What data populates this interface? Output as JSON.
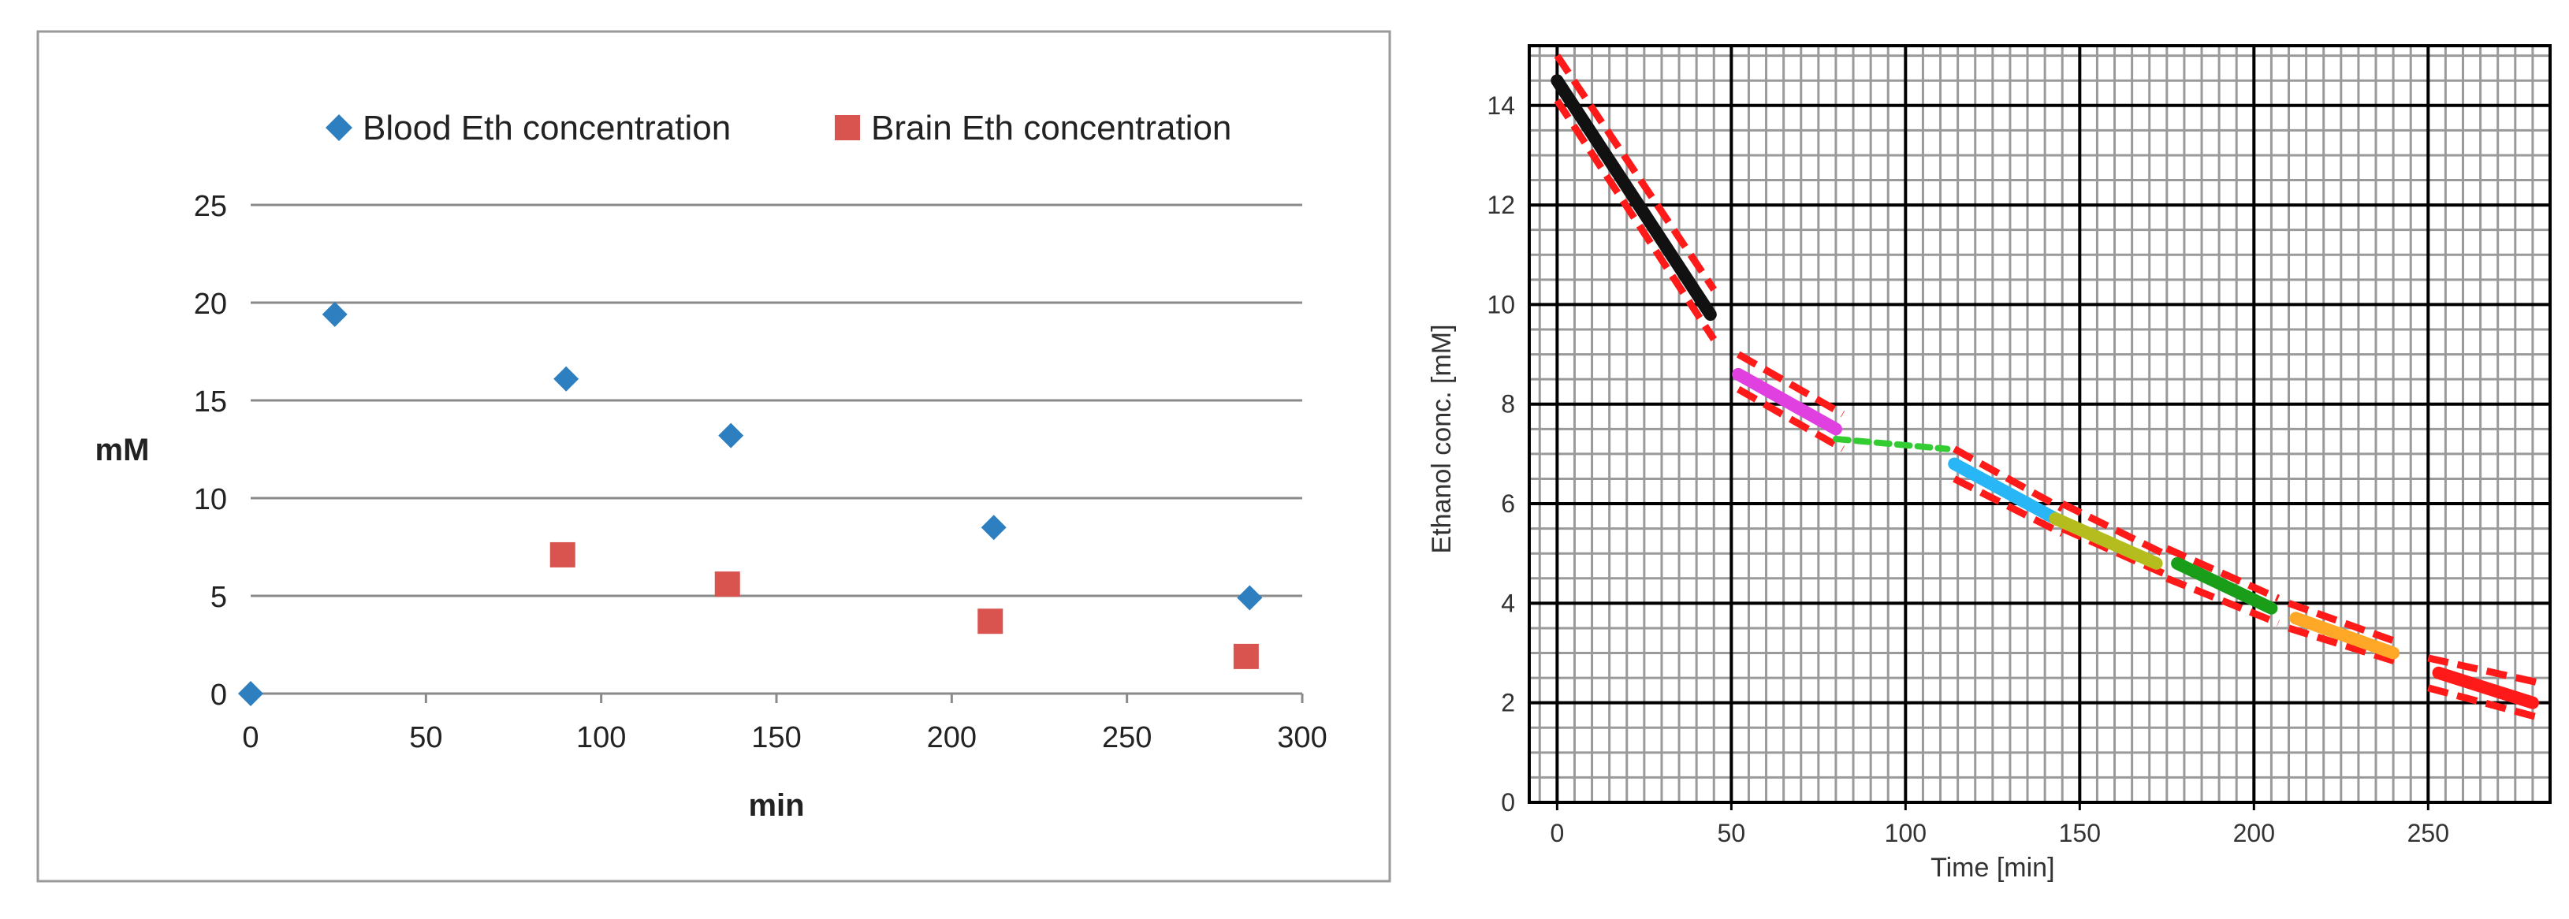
{
  "chart_data": [
    {
      "type": "scatter",
      "title": "",
      "xlabel": "min",
      "ylabel": "mM",
      "xlim": [
        0,
        300
      ],
      "ylim": [
        0,
        25
      ],
      "xticks": [
        0,
        50,
        100,
        150,
        200,
        250,
        300
      ],
      "yticks": [
        0,
        5,
        10,
        15,
        20,
        25
      ],
      "grid": "horizontal",
      "legend_position": "top",
      "series": [
        {
          "name": "Blood Eth concentration",
          "marker": "diamond",
          "color": "#2e7fc0",
          "points": [
            [
              0,
              0
            ],
            [
              24,
              19.4
            ],
            [
              90,
              16.1
            ],
            [
              137,
              13.2
            ],
            [
              212,
              8.5
            ],
            [
              285,
              4.9
            ]
          ]
        },
        {
          "name": "Brain Eth concentration",
          "marker": "square",
          "color": "#d9534f",
          "points": [
            [
              89,
              7.1
            ],
            [
              136,
              5.6
            ],
            [
              211,
              3.7
            ],
            [
              284,
              1.9
            ]
          ]
        }
      ]
    },
    {
      "type": "line",
      "title": "",
      "xlabel": "Time [min]",
      "ylabel": "Ethanol conc. [mM]",
      "xlim": [
        -8,
        285
      ],
      "ylim": [
        0,
        15.2
      ],
      "xticks": [
        0,
        50,
        100,
        150,
        200,
        250
      ],
      "yticks": [
        0,
        2,
        4,
        6,
        8,
        10,
        12,
        14
      ],
      "grid": "major+minor",
      "series": [
        {
          "name": "",
          "color": "#111111",
          "x": [
            0,
            44
          ],
          "y": [
            14.5,
            9.8
          ]
        },
        {
          "name": "",
          "color": "#e040e0",
          "x": [
            52,
            80
          ],
          "y": [
            8.6,
            7.5
          ]
        },
        {
          "name": "",
          "color": "#33cc33",
          "style": "dashed",
          "x": [
            80,
            112
          ],
          "y": [
            7.3,
            7.1
          ]
        },
        {
          "name": "",
          "color": "#29b6f6",
          "x": [
            114,
            143
          ],
          "y": [
            6.8,
            5.7
          ]
        },
        {
          "name": "",
          "color": "#b5bd1e",
          "x": [
            143,
            172
          ],
          "y": [
            5.7,
            4.8
          ]
        },
        {
          "name": "",
          "color": "#1a9e1a",
          "x": [
            178,
            205
          ],
          "y": [
            4.8,
            3.9
          ]
        },
        {
          "name": "",
          "color": "#ffa726",
          "x": [
            212,
            240
          ],
          "y": [
            3.7,
            3.0
          ]
        },
        {
          "name": "",
          "color": "#ff1a1a",
          "x": [
            253,
            280
          ],
          "y": [
            2.6,
            2.0
          ]
        }
      ],
      "bounds": [
        {
          "color": "#ff1a1a",
          "x": [
            0,
            45
          ],
          "upper": [
            15.0,
            10.3
          ],
          "lower": [
            14.1,
            9.3
          ]
        },
        {
          "color": "#ff1a1a",
          "x": [
            52,
            82
          ],
          "upper": [
            9.0,
            7.8
          ],
          "lower": [
            8.3,
            7.1
          ]
        },
        {
          "color": "#ff1a1a",
          "x": [
            114,
            145
          ],
          "upper": [
            7.1,
            5.9
          ],
          "lower": [
            6.5,
            5.4
          ]
        },
        {
          "color": "#ff1a1a",
          "x": [
            145,
            174
          ],
          "upper": [
            6.0,
            5.0
          ],
          "lower": [
            5.5,
            4.6
          ]
        },
        {
          "color": "#ff1a1a",
          "x": [
            175,
            207
          ],
          "upper": [
            5.1,
            4.1
          ],
          "lower": [
            4.5,
            3.6
          ]
        },
        {
          "color": "#ff1a1a",
          "x": [
            210,
            242
          ],
          "upper": [
            4.0,
            3.2
          ],
          "lower": [
            3.5,
            2.8
          ]
        },
        {
          "color": "#ff1a1a",
          "x": [
            250,
            282
          ],
          "upper": [
            2.9,
            2.4
          ],
          "lower": [
            2.3,
            1.7
          ]
        }
      ]
    }
  ]
}
